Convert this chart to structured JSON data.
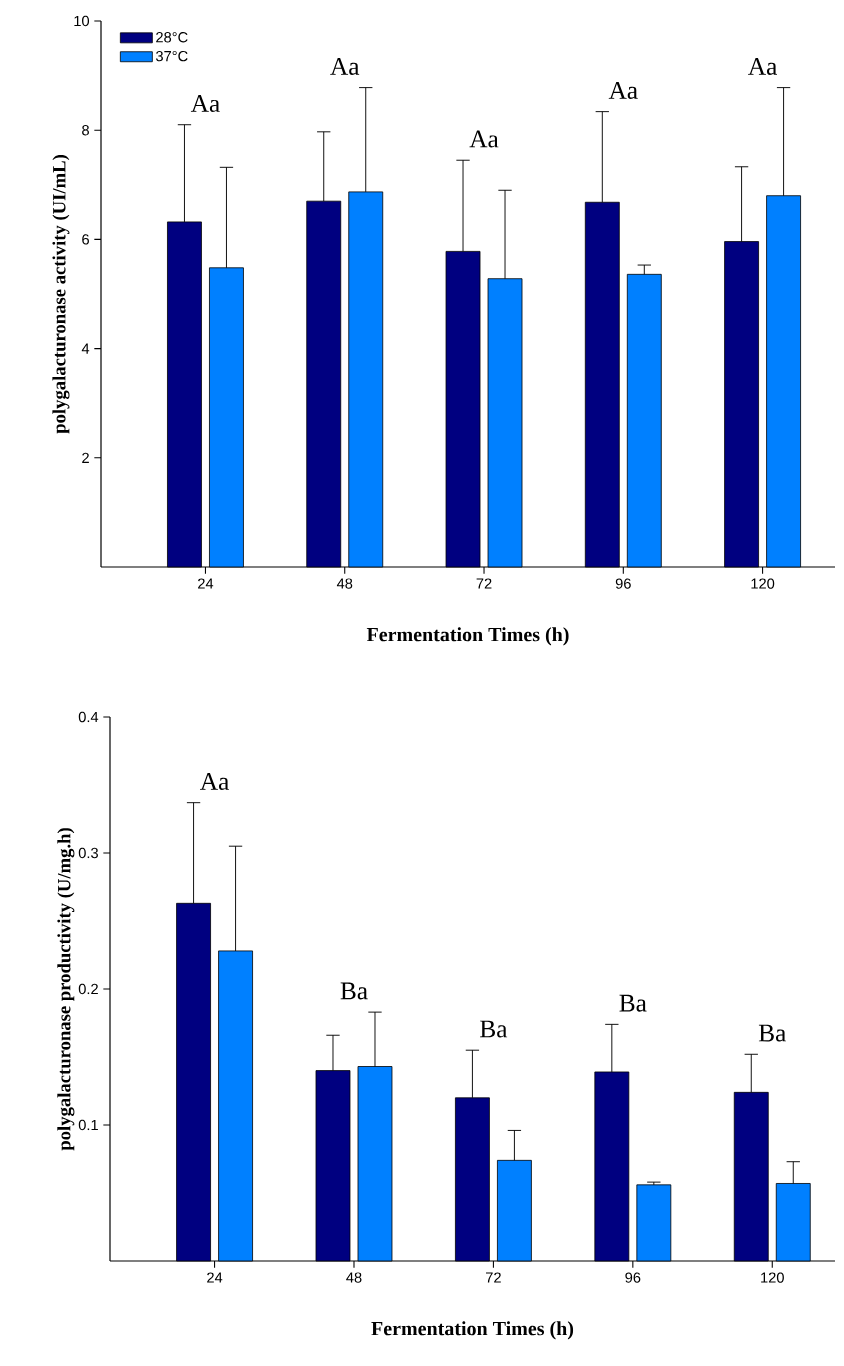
{
  "chart_data": [
    {
      "type": "bar",
      "xlabel": "Fermentation Times (h)",
      "ylabel": "polygalacturonase activity (UI/mL)",
      "categories": [
        "24",
        "48",
        "72",
        "96",
        "120"
      ],
      "series": [
        {
          "name": "28°C",
          "color": "#000080",
          "values": [
            6.32,
            6.7,
            5.78,
            6.68,
            5.96
          ],
          "errors": [
            1.78,
            1.27,
            1.67,
            1.66,
            1.37
          ]
        },
        {
          "name": "37°C",
          "color": "#0080ff",
          "values": [
            5.48,
            6.87,
            5.28,
            5.36,
            6.8
          ],
          "errors": [
            1.84,
            1.91,
            1.62,
            0.17,
            1.98
          ]
        }
      ],
      "ylim": [
        0,
        10
      ],
      "yticks": [
        2,
        4,
        6,
        8,
        10
      ],
      "legend": "top left",
      "annotations": [
        "Aa",
        "Aa",
        "Aa",
        "Aa",
        "Aa"
      ]
    },
    {
      "type": "bar",
      "xlabel": "Fermentation Times (h)",
      "ylabel": "polygalacturonase productivity (U/mg.h)",
      "categories": [
        "24",
        "48",
        "72",
        "96",
        "120"
      ],
      "series": [
        {
          "color": "#000080",
          "values": [
            0.263,
            0.14,
            0.12,
            0.139,
            0.124
          ],
          "errors": [
            0.074,
            0.026,
            0.035,
            0.035,
            0.028
          ]
        },
        {
          "color": "#0080ff",
          "values": [
            0.228,
            0.143,
            0.074,
            0.056,
            0.057
          ],
          "errors": [
            0.077,
            0.04,
            0.022,
            0.002,
            0.016
          ]
        }
      ],
      "ylim": [
        0,
        0.4
      ],
      "yticks": [
        0.1,
        0.2,
        0.3,
        0.4
      ],
      "annotations": [
        "Aa",
        "Ba",
        "Ba",
        "Ba",
        "Ba"
      ]
    }
  ]
}
